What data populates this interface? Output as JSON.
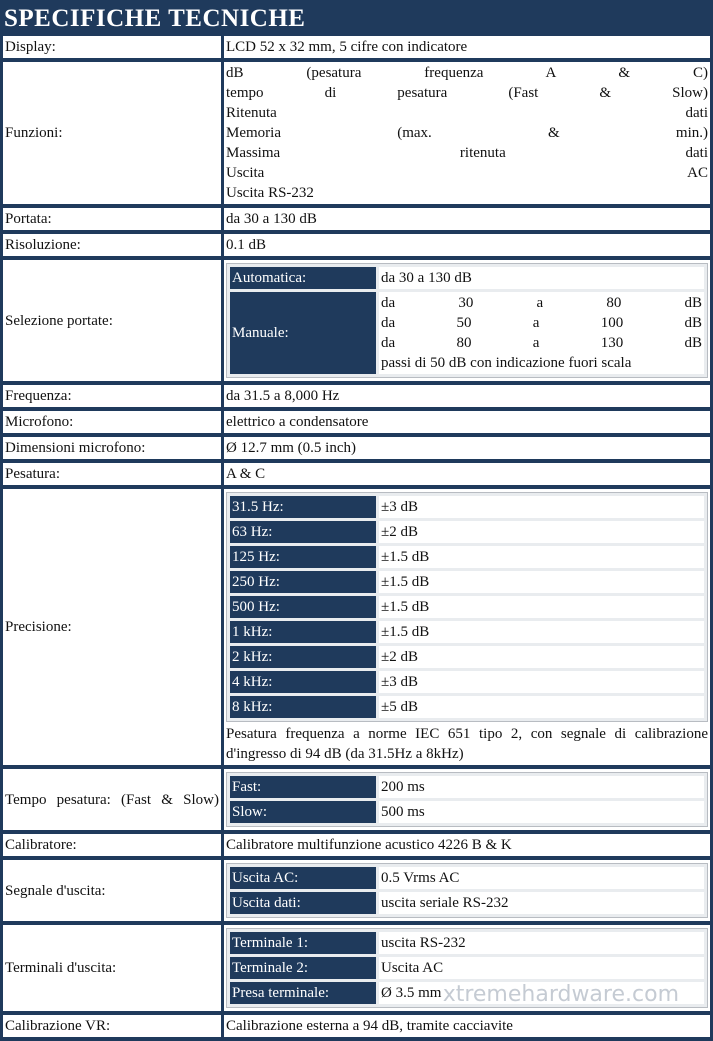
{
  "title": "SPECIFICHE TECNICHE",
  "rows": [
    {
      "label": "Display:",
      "value": "LCD 52 x 32 mm, 5 cifre con indicatore"
    },
    {
      "label": "Funzioni:",
      "lines": [
        "dB (pesatura frequenza A & C)",
        "tempo di pesatura (Fast & Slow)",
        "Ritenuta dati",
        "Memoria (max. & min.)",
        "Massima ritenuta dati",
        "Uscita AC",
        "Uscita RS-232"
      ]
    },
    {
      "label": "Portata:",
      "value": "da 30 a 130 dB"
    },
    {
      "label": "Risoluzione:",
      "value": "0.1 dB"
    },
    {
      "label": "Selezione portate:",
      "sub": [
        {
          "label": "Automatica:",
          "lines": [
            "da 30 a 130 dB"
          ]
        },
        {
          "label": "Manuale:",
          "lines": [
            "da 30 a 80 dB",
            "da 50 a 100 dB",
            "da 80 a 130 dB",
            "passi di 50 dB con indicazione fuori scala"
          ]
        }
      ]
    },
    {
      "label": "Frequenza:",
      "value": "da 31.5 a 8,000 Hz"
    },
    {
      "label": "Microfono:",
      "value": "elettrico a condensatore"
    },
    {
      "label": "Dimensioni microfono:",
      "value": "Ø 12.7 mm (0.5 inch)"
    },
    {
      "label": "Pesatura:",
      "value": "A & C"
    },
    {
      "label": "Precisione:",
      "sub": [
        {
          "label": "31.5 Hz:",
          "lines": [
            "±3 dB"
          ]
        },
        {
          "label": "63 Hz:",
          "lines": [
            "±2 dB"
          ]
        },
        {
          "label": "125 Hz:",
          "lines": [
            "±1.5 dB"
          ]
        },
        {
          "label": "250 Hz:",
          "lines": [
            "±1.5 dB"
          ]
        },
        {
          "label": "500 Hz:",
          "lines": [
            "±1.5 dB"
          ]
        },
        {
          "label": "1 kHz:",
          "lines": [
            "±1.5 dB"
          ]
        },
        {
          "label": "2 kHz:",
          "lines": [
            "±2 dB"
          ]
        },
        {
          "label": "4 kHz:",
          "lines": [
            "±3 dB"
          ]
        },
        {
          "label": "8 kHz:",
          "lines": [
            "±5 dB"
          ]
        }
      ],
      "note": "Pesatura frequenza a norme IEC 651 tipo 2, con segnale di calibrazione d'ingresso di 94 dB (da 31.5Hz a 8kHz)"
    },
    {
      "label": "Tempo pesatura: (Fast & Slow)",
      "sub": [
        {
          "label": "Fast:",
          "lines": [
            "200 ms"
          ]
        },
        {
          "label": "Slow:",
          "lines": [
            "500 ms"
          ]
        }
      ]
    },
    {
      "label": "Calibratore:",
      "value": "Calibratore multifunzione acustico 4226 B & K"
    },
    {
      "label": "Segnale d'uscita:",
      "sub": [
        {
          "label": "Uscita AC:",
          "lines": [
            "0.5 Vrms AC"
          ]
        },
        {
          "label": "Uscita dati:",
          "lines": [
            "uscita seriale RS-232"
          ]
        }
      ]
    },
    {
      "label": "Terminali d'uscita:",
      "sub": [
        {
          "label": "Terminale 1:",
          "lines": [
            "uscita RS-232"
          ]
        },
        {
          "label": "Terminale 2:",
          "lines": [
            "Uscita AC"
          ]
        },
        {
          "label": "Presa terminale:",
          "lines": [
            "Ø 3.5 mm"
          ]
        }
      ]
    },
    {
      "label": "Calibrazione VR:",
      "value": "Calibrazione esterna a 94 dB, tramite cacciavite"
    }
  ],
  "watermark": "xtremehardware.com"
}
